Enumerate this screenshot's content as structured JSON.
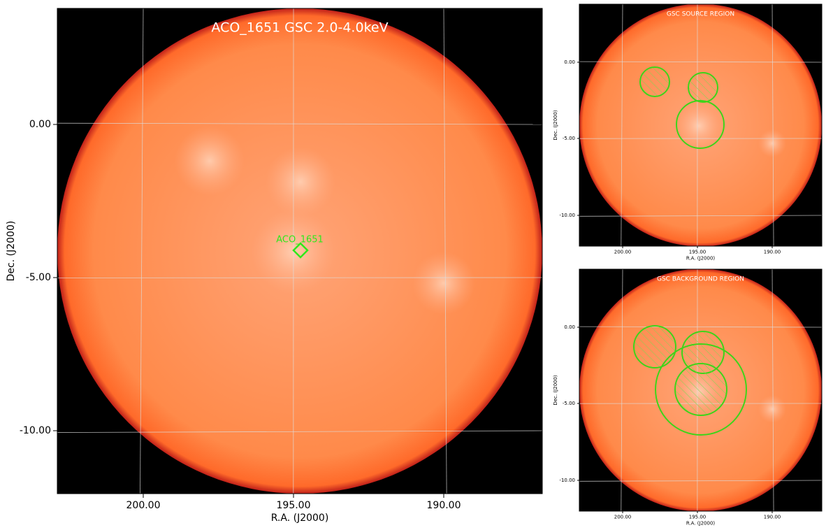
{
  "panels": [
    {
      "title": "ACO_1651 GSC 2.0-4.0keV",
      "x_label": "R.A. (J2000)",
      "y_label": "Dec. (J2000)",
      "x_tick_labels": [
        "200.00",
        "195.00",
        "190.00"
      ],
      "y_tick_labels": [
        "0.00",
        "-5.00",
        "-10.00"
      ],
      "annotation": "ACO_1651"
    },
    {
      "title": "GSC SOURCE REGION",
      "x_label": "R.A. (J2000)",
      "y_label": "Dec. (J2000)",
      "x_tick_labels": [
        "200.00",
        "195.00",
        "190.00"
      ],
      "y_tick_labels": [
        "0.00",
        "-5.00",
        "-10.00"
      ]
    },
    {
      "title": "GSC BACKGROUND REGION",
      "x_label": "R.A. (J2000)",
      "y_label": "Dec. (J2000)",
      "x_tick_labels": [
        "200.00",
        "195.00",
        "190.00"
      ],
      "y_tick_labels": [
        "0.00",
        "-5.00",
        "-10.00"
      ]
    }
  ]
}
